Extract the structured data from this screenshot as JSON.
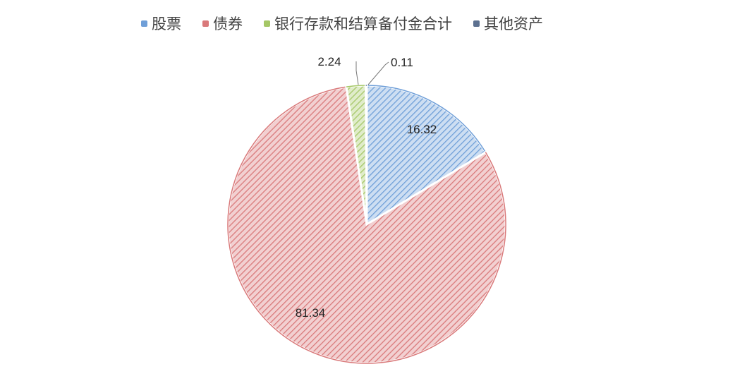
{
  "chart_data": {
    "type": "pie",
    "title": "",
    "start_angle": "top",
    "direction": "clockwise",
    "legend_position": "top",
    "slices": [
      {
        "name": "股票",
        "value": 16.32,
        "label": "16.32",
        "color": "#6f9fd8"
      },
      {
        "name": "债券",
        "value": 81.34,
        "label": "81.34",
        "color": "#d9797a"
      },
      {
        "name": "银行存款和结算备付金合计",
        "value": 2.24,
        "label": "2.24",
        "color": "#a5c766"
      },
      {
        "name": "其他资产",
        "value": 0.11,
        "label": "0.11",
        "color": "#5d7190"
      }
    ],
    "fill_style": "diagonal-hatch"
  }
}
